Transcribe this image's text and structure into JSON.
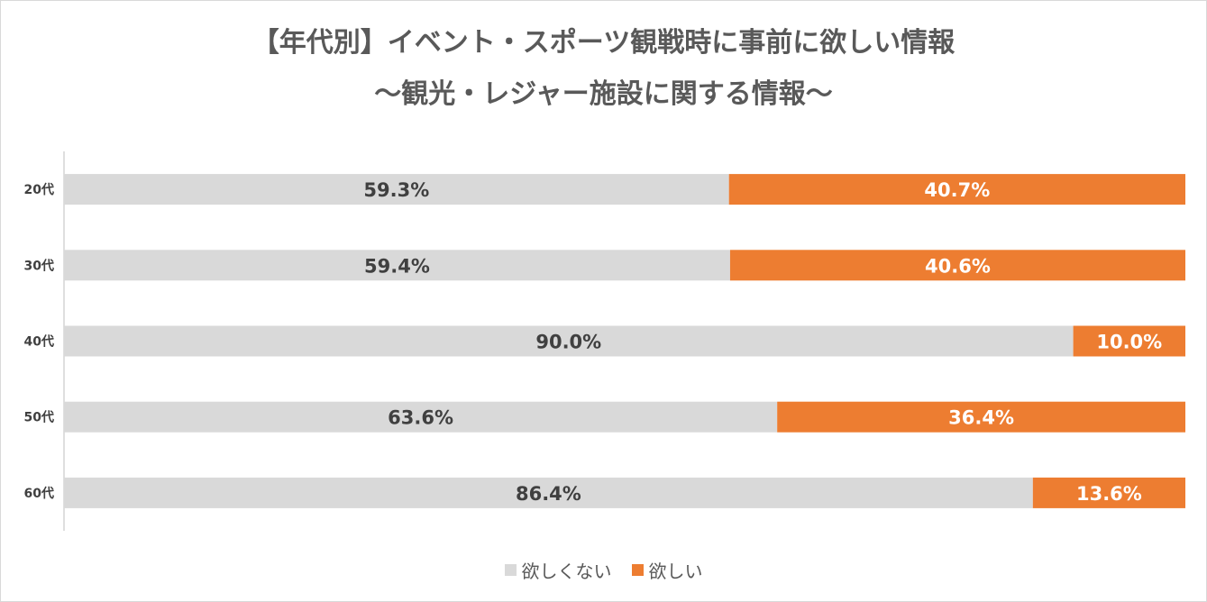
{
  "title_line1": "【年代別】イベント・スポーツ観戦時に事前に欲しい情報",
  "title_line2": "〜観光・レジャー施設に関する情報〜",
  "colors": {
    "no": "#d9d9d9",
    "yes": "#ed7d31",
    "axis": "#bfbfbf",
    "text": "#404040"
  },
  "chart_data": {
    "type": "bar",
    "orientation": "horizontal",
    "stacked": "100%",
    "categories": [
      "20代",
      "30代",
      "40代",
      "50代",
      "60代"
    ],
    "series": [
      {
        "name": "欲しくない",
        "values": [
          59.3,
          59.4,
          90.0,
          63.6,
          86.4
        ],
        "labels": [
          "59.3%",
          "59.4%",
          "90.0%",
          "63.6%",
          "86.4%"
        ]
      },
      {
        "name": "欲しい",
        "values": [
          40.7,
          40.6,
          10.0,
          36.4,
          13.6
        ],
        "labels": [
          "40.7%",
          "40.6%",
          "10.0%",
          "36.4%",
          "13.6%"
        ]
      }
    ],
    "xlim": [
      0,
      100
    ],
    "legend": "bottom",
    "grid": false
  }
}
